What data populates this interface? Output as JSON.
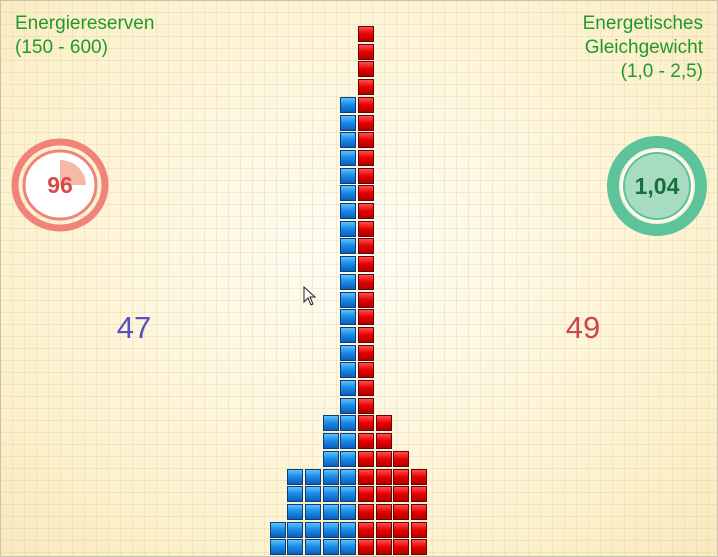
{
  "left_panel": {
    "title_line1": "Energiereserven",
    "title_line2": "(150 - 600)",
    "gauge_value": "96",
    "gauge_fill_fraction": 0.25,
    "score": "47"
  },
  "right_panel": {
    "title_line1": "Energetisches",
    "title_line2": "Gleichgewicht",
    "title_line3": "(1,0 - 2,5)",
    "gauge_value": "1,04",
    "score": "49"
  },
  "colors": {
    "label_green": "#1f9a2a",
    "gauge_left": "#f2837a",
    "gauge_left_fill": "#f7b9a6",
    "gauge_right": "#5cc39a",
    "score_left": "#5b4fc4",
    "score_right": "#c9494a",
    "block_blue": "#1b8ee8",
    "block_red": "#e60000"
  },
  "chart_data": {
    "type": "bar",
    "blue_column_heights": [
      2,
      5,
      5,
      8,
      26
    ],
    "red_column_heights": [
      30,
      8,
      6,
      5
    ]
  },
  "icons": [
    "mouse-cursor-icon"
  ]
}
